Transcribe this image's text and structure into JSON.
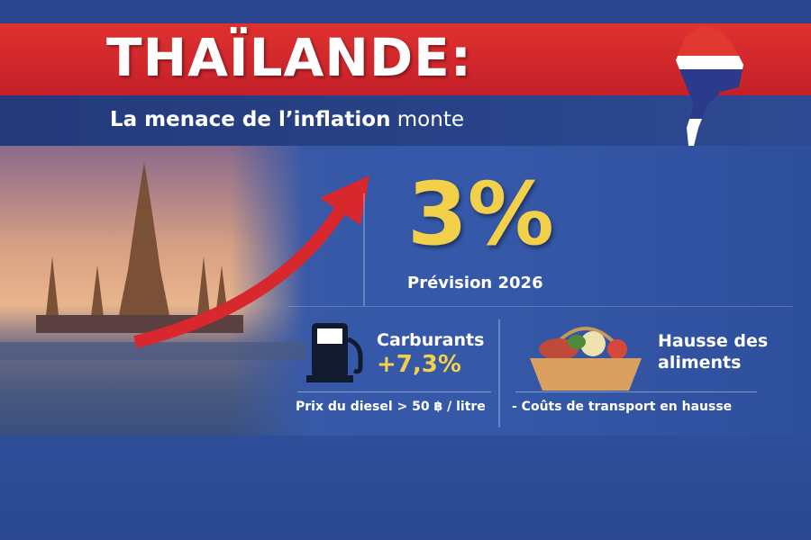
{
  "header": {
    "title": "THAÏLANDE:",
    "subtitle_bold": "La menace de l’inflation",
    "subtitle_rest": "monte"
  },
  "forecast": {
    "value": "3%",
    "label": "Prévision 2026"
  },
  "fuel": {
    "icon": "fuel-pump-icon",
    "title": "Carburants",
    "value": "+7,3%",
    "note": "Prix du diesel > 50 ฿ / litre"
  },
  "food": {
    "icon": "food-basket-icon",
    "title_line1": "Hausse des",
    "title_line2": "aliments",
    "note": "- Coûts de transport en hausse"
  },
  "colors": {
    "red": "#d8282d",
    "blue": "#2e4a92",
    "yellow": "#f2d04a"
  }
}
